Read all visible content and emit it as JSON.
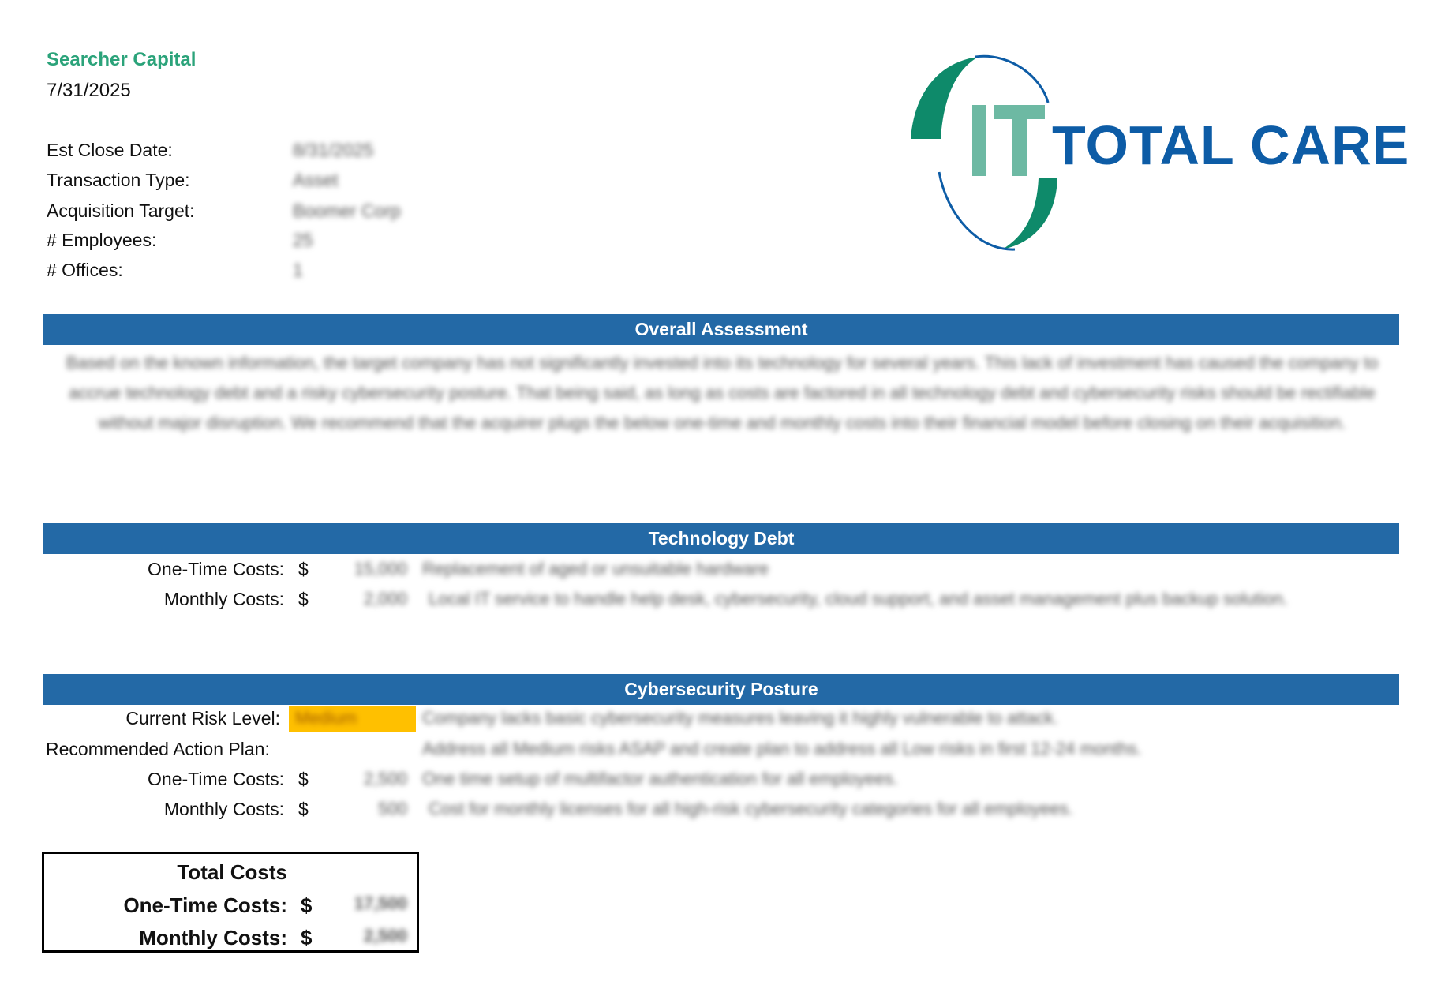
{
  "header": {
    "company": "Searcher Capital",
    "date": "7/31/2025",
    "logo_text": "IT TOTAL CARE",
    "colors": {
      "company": "#2BA37A",
      "logo_blue": "#0D5CA6",
      "logo_green": "#0E8A6A",
      "logo_light_green": "#6DB9A3"
    }
  },
  "info": [
    {
      "label": "Est Close Date:",
      "value": "8/31/2025"
    },
    {
      "label": "Transaction Type:",
      "value": "Asset"
    },
    {
      "label": "Acquisition Target:",
      "value": "Boomer Corp"
    },
    {
      "label": "# Employees:",
      "value": "25"
    },
    {
      "label": "# Offices:",
      "value": "1"
    }
  ],
  "overall": {
    "title": "Overall Assessment",
    "text": "Based on the known information, the target company has not significantly invested into its technology for several years. This lack of investment has caused the company to accrue technology debt and a risky cybersecurity posture. That being said, as long as costs are factored in all technology debt and cybersecurity risks should be rectifiable without major disruption. We recommend that the acquirer plugs the below one-time and monthly costs into their financial model before closing on their acquisition."
  },
  "tech_debt": {
    "title": "Technology Debt",
    "rows": [
      {
        "label": "One-Time Costs:",
        "currency": "$",
        "amount": "15,000",
        "desc": "Replacement of aged or unsuitable hardware"
      },
      {
        "label": "Monthly Costs:",
        "currency": "$",
        "amount": "2,000",
        "desc": "Local IT service to handle help desk, cybersecurity, cloud support, and asset management plus backup solution."
      }
    ]
  },
  "cyber": {
    "title": "Cybersecurity Posture",
    "risk_label": "Current Risk Level:",
    "risk_value": "Medium",
    "risk_color": "#FFC000",
    "risk_desc": "Company lacks basic cybersecurity measures leaving it highly vulnerable to attack.",
    "plan_label": "Recommended Action Plan:",
    "plan_desc": "Address all Medium risks ASAP and create plan to address all Low risks in first 12-24 months.",
    "rows": [
      {
        "label": "One-Time Costs:",
        "currency": "$",
        "amount": "2,500",
        "desc": "One time setup of multifactor authentication for all employees."
      },
      {
        "label": "Monthly Costs:",
        "currency": "$",
        "amount": "500",
        "desc": "Cost for monthly licenses for all high-risk cybersecurity categories for all employees."
      }
    ]
  },
  "totals": {
    "title": "Total Costs",
    "rows": [
      {
        "label": "One-Time Costs:",
        "currency": "$",
        "amount": "17,500"
      },
      {
        "label": "Monthly Costs:",
        "currency": "$",
        "amount": "2,500"
      }
    ]
  }
}
